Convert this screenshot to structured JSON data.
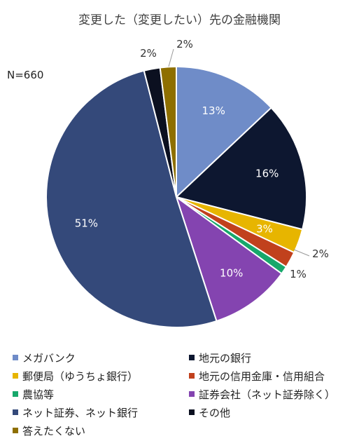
{
  "chart_data": {
    "type": "pie",
    "title": "変更した（変更したい）先の金融機関",
    "note": "N=660",
    "slices": [
      {
        "name": "メガバンク",
        "value": 13,
        "label": "13%",
        "color": "#6f8cc8"
      },
      {
        "name": "地元の銀行",
        "value": 16,
        "label": "16%",
        "color": "#0d1730"
      },
      {
        "name": "郵便局（ゆうちょ銀行）",
        "value": 3,
        "label": "3%",
        "color": "#e7b500"
      },
      {
        "name": "地元の信用金庫・信用組合",
        "value": 2,
        "label": "2%",
        "color": "#c1411d"
      },
      {
        "name": "農協等",
        "value": 1,
        "label": "1%",
        "color": "#17a86b"
      },
      {
        "name": "証券会社（ネット証券除く）",
        "value": 10,
        "label": "10%",
        "color": "#8444b0"
      },
      {
        "name": "ネット証券、ネット銀行",
        "value": 51,
        "label": "51%",
        "color": "#34497a"
      },
      {
        "name": "その他",
        "value": 2,
        "label": "2%",
        "color": "#0b1020"
      },
      {
        "name": "答えたくない",
        "value": 2,
        "label": "2%",
        "color": "#8e6f00"
      }
    ],
    "legend_position": "bottom"
  }
}
